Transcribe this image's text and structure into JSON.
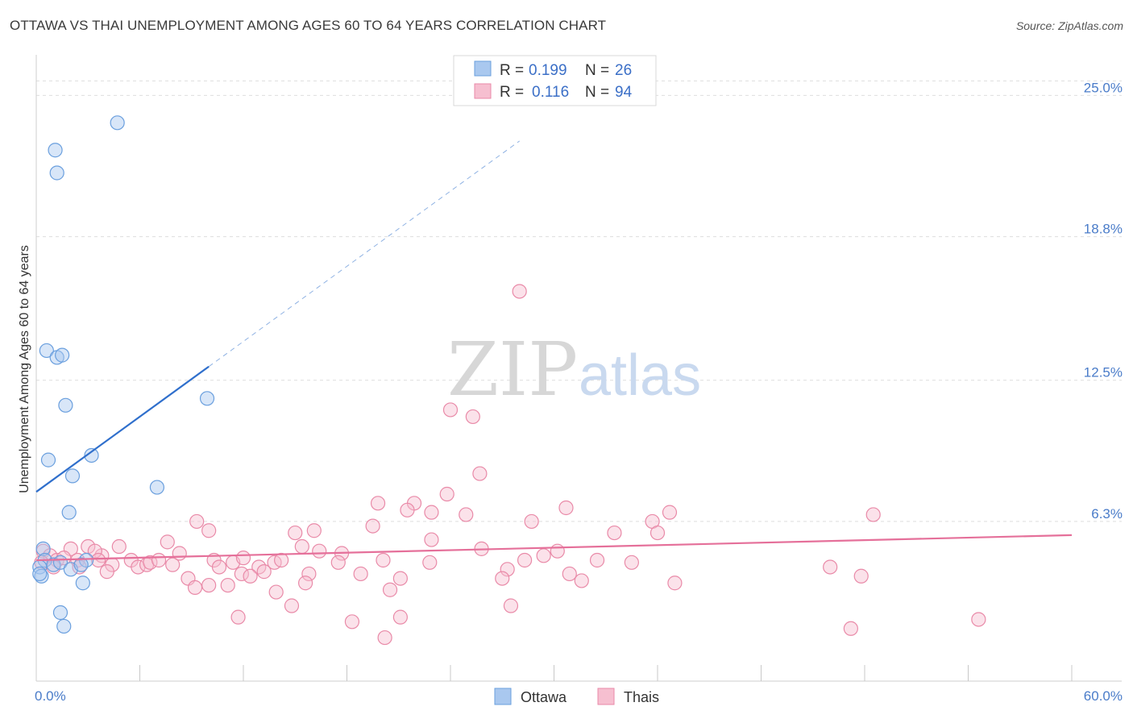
{
  "title": "OTTAWA VS THAI UNEMPLOYMENT AMONG AGES 60 TO 64 YEARS CORRELATION CHART",
  "source": "Source: ZipAtlas.com",
  "watermark": {
    "zip": "ZIP",
    "atlas": "atlas"
  },
  "colors": {
    "ottawa_fill": "#a9c8ef",
    "ottawa_stroke": "#6a9fde",
    "ottawa_line": "#2f6fcc",
    "thais_fill": "#f6bfd0",
    "thais_stroke": "#e98aa8",
    "thais_line": "#e5709a",
    "grid": "#dedede",
    "axis_label": "#4a7cc9"
  },
  "legend": {
    "rows": [
      {
        "r_label": "R =",
        "r_value": "0.199",
        "n_label": "N =",
        "n_value": "26"
      },
      {
        "r_label": "R =",
        "r_value": "0.116",
        "n_label": "N =",
        "n_value": "94"
      }
    ]
  },
  "chart_data": {
    "type": "scatter",
    "title": "OTTAWA VS THAI UNEMPLOYMENT AMONG AGES 60 TO 64 YEARS CORRELATION CHART",
    "xlabel": "",
    "ylabel": "Unemployment Among Ages 60 to 64 years",
    "xlim": [
      0,
      60
    ],
    "ylim": [
      0,
      26.5
    ],
    "x_tick_labels": [
      {
        "value": 0,
        "label": "0.0%"
      },
      {
        "value": 60,
        "label": "60.0%"
      }
    ],
    "x_minor_ticks": [
      6,
      12,
      18,
      24,
      30,
      36,
      42,
      48,
      54,
      60
    ],
    "y_ticks": [
      {
        "value": 6.3,
        "label": "6.3%"
      },
      {
        "value": 12.5,
        "label": "12.5%"
      },
      {
        "value": 18.8,
        "label": "18.8%"
      },
      {
        "value": 25.0,
        "label": "25.0%"
      }
    ],
    "series": [
      {
        "name": "Ottawa",
        "r": 0.199,
        "n": 26,
        "trend": {
          "x0": 0,
          "y0": 7.6,
          "x1": 10,
          "y1": 13.1,
          "dash_x1": 28,
          "dash_y1": 23.0
        },
        "points": [
          [
            4.7,
            23.8
          ],
          [
            1.1,
            22.6
          ],
          [
            1.2,
            21.6
          ],
          [
            0.6,
            13.8
          ],
          [
            1.2,
            13.5
          ],
          [
            1.5,
            13.6
          ],
          [
            1.7,
            11.4
          ],
          [
            9.9,
            11.7
          ],
          [
            0.7,
            9.0
          ],
          [
            3.2,
            9.2
          ],
          [
            2.1,
            8.3
          ],
          [
            7.0,
            7.8
          ],
          [
            1.9,
            6.7
          ],
          [
            0.4,
            5.1
          ],
          [
            2.9,
            4.6
          ],
          [
            0.5,
            4.6
          ],
          [
            1.0,
            4.4
          ],
          [
            1.4,
            4.5
          ],
          [
            0.2,
            4.3
          ],
          [
            0.3,
            3.9
          ],
          [
            0.2,
            4.0
          ],
          [
            2.0,
            4.2
          ],
          [
            2.6,
            4.4
          ],
          [
            2.7,
            3.6
          ],
          [
            1.4,
            2.3
          ],
          [
            1.6,
            1.7
          ]
        ]
      },
      {
        "name": "Thais",
        "r": 0.116,
        "n": 94,
        "trend": {
          "x0": 0,
          "y0": 4.6,
          "x1": 60,
          "y1": 5.7
        },
        "points": [
          [
            28.0,
            16.4
          ],
          [
            24.0,
            11.2
          ],
          [
            25.3,
            10.9
          ],
          [
            25.7,
            8.4
          ],
          [
            23.8,
            7.5
          ],
          [
            19.8,
            7.1
          ],
          [
            21.9,
            7.1
          ],
          [
            30.7,
            6.9
          ],
          [
            36.7,
            6.7
          ],
          [
            35.7,
            6.3
          ],
          [
            48.5,
            6.6
          ],
          [
            21.5,
            6.8
          ],
          [
            22.9,
            6.7
          ],
          [
            24.9,
            6.6
          ],
          [
            28.7,
            6.3
          ],
          [
            9.3,
            6.3
          ],
          [
            10.0,
            5.9
          ],
          [
            16.1,
            5.9
          ],
          [
            19.5,
            6.1
          ],
          [
            33.5,
            5.8
          ],
          [
            36.0,
            5.8
          ],
          [
            15.0,
            5.8
          ],
          [
            22.9,
            5.5
          ],
          [
            7.6,
            5.4
          ],
          [
            4.8,
            5.2
          ],
          [
            3.0,
            5.2
          ],
          [
            2.0,
            5.1
          ],
          [
            8.3,
            4.9
          ],
          [
            15.4,
            5.2
          ],
          [
            16.4,
            5.0
          ],
          [
            17.7,
            4.9
          ],
          [
            25.8,
            5.1
          ],
          [
            30.2,
            5.0
          ],
          [
            29.4,
            4.8
          ],
          [
            3.8,
            4.8
          ],
          [
            3.4,
            5.0
          ],
          [
            0.4,
            5.0
          ],
          [
            0.8,
            4.8
          ],
          [
            0.3,
            4.5
          ],
          [
            1.2,
            4.6
          ],
          [
            1.6,
            4.7
          ],
          [
            2.4,
            4.6
          ],
          [
            3.6,
            4.6
          ],
          [
            4.4,
            4.4
          ],
          [
            5.5,
            4.6
          ],
          [
            5.9,
            4.3
          ],
          [
            6.4,
            4.4
          ],
          [
            6.6,
            4.5
          ],
          [
            7.1,
            4.6
          ],
          [
            7.9,
            4.4
          ],
          [
            10.3,
            4.6
          ],
          [
            10.6,
            4.3
          ],
          [
            11.4,
            4.5
          ],
          [
            12.0,
            4.7
          ],
          [
            12.9,
            4.3
          ],
          [
            13.8,
            4.5
          ],
          [
            14.2,
            4.6
          ],
          [
            17.5,
            4.5
          ],
          [
            20.1,
            4.6
          ],
          [
            22.8,
            4.5
          ],
          [
            28.3,
            4.6
          ],
          [
            32.5,
            4.6
          ],
          [
            34.5,
            4.5
          ],
          [
            1.0,
            4.3
          ],
          [
            2.5,
            4.3
          ],
          [
            4.1,
            4.1
          ],
          [
            11.9,
            4.0
          ],
          [
            12.4,
            3.9
          ],
          [
            13.2,
            4.1
          ],
          [
            15.8,
            4.0
          ],
          [
            18.8,
            4.0
          ],
          [
            21.1,
            3.8
          ],
          [
            27.3,
            4.2
          ],
          [
            27.0,
            3.8
          ],
          [
            30.9,
            4.0
          ],
          [
            31.6,
            3.7
          ],
          [
            8.8,
            3.8
          ],
          [
            9.2,
            3.4
          ],
          [
            10.0,
            3.5
          ],
          [
            11.1,
            3.5
          ],
          [
            13.9,
            3.2
          ],
          [
            15.6,
            3.6
          ],
          [
            20.5,
            3.3
          ],
          [
            37.0,
            3.6
          ],
          [
            46.0,
            4.3
          ],
          [
            47.8,
            3.9
          ],
          [
            14.8,
            2.6
          ],
          [
            27.5,
            2.6
          ],
          [
            11.7,
            2.1
          ],
          [
            18.3,
            1.9
          ],
          [
            21.1,
            2.1
          ],
          [
            20.2,
            1.2
          ],
          [
            47.2,
            1.6
          ],
          [
            54.6,
            2.0
          ]
        ]
      }
    ]
  }
}
